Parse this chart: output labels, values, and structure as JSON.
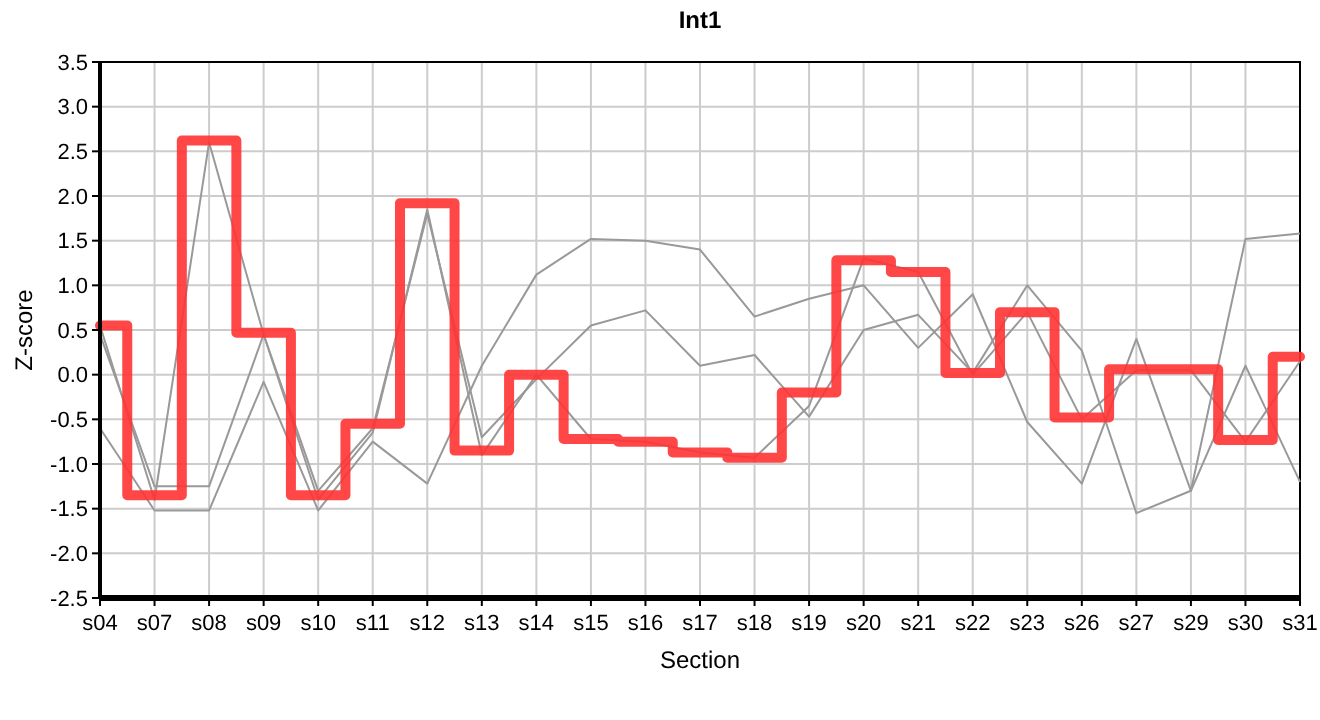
{
  "chart_data": {
    "type": "line",
    "title": "Int1",
    "xlabel": "Section",
    "ylabel": "Z-score",
    "categories": [
      "s04",
      "s07",
      "s08",
      "s09",
      "s10",
      "s11",
      "s12",
      "s13",
      "s14",
      "s15",
      "s16",
      "s17",
      "s18",
      "s19",
      "s20",
      "s21",
      "s22",
      "s23",
      "s26",
      "s27",
      "s29",
      "s30",
      "s31"
    ],
    "ylim": [
      -2.5,
      3.5
    ],
    "yticks": [
      {
        "value": -2.5,
        "label": "-2.5"
      },
      {
        "value": -2,
        "label": "-2.0"
      },
      {
        "value": -1.5,
        "label": "-1.5"
      },
      {
        "value": -1,
        "label": "-1.0"
      },
      {
        "value": -0.5,
        "label": "-0.5"
      },
      {
        "value": 0,
        "label": "0.0"
      },
      {
        "value": 0.5,
        "label": "0.5"
      },
      {
        "value": 1,
        "label": "1.0"
      },
      {
        "value": 1.5,
        "label": "1.5"
      },
      {
        "value": 2,
        "label": "2.0"
      },
      {
        "value": 2.5,
        "label": "2.5"
      },
      {
        "value": 3,
        "label": "3.0"
      },
      {
        "value": 3.5,
        "label": "3.5"
      }
    ],
    "grid": true,
    "marker": "none",
    "line_style": "solid",
    "series": [
      {
        "color": "#999999",
        "values": [
          -0.6,
          -1.52,
          -1.52,
          -0.08,
          -1.52,
          -0.75,
          -1.22,
          0.1,
          1.12,
          1.52,
          1.5,
          1.4,
          0.65,
          0.85,
          1.0,
          0.3,
          0.9,
          -0.53,
          -1.22,
          0.4,
          -1.3,
          1.52,
          1.58
        ]
      },
      {
        "color": "#999999",
        "values": [
          0.45,
          -1.25,
          -1.25,
          0.45,
          -1.3,
          -0.6,
          1.8,
          -0.7,
          -0.05,
          0.55,
          0.72,
          0.1,
          0.22,
          -0.47,
          0.5,
          0.67,
          0.02,
          1.0,
          0.27,
          -1.55,
          -1.3,
          0.1,
          -1.2
        ]
      },
      {
        "color": "#999999",
        "values": [
          0.55,
          -1.4,
          2.6,
          0.45,
          -1.4,
          -0.65,
          1.85,
          -0.9,
          0.0,
          -0.72,
          -0.75,
          -0.87,
          -0.93,
          -0.35,
          1.3,
          1.15,
          0.0,
          0.7,
          -0.5,
          0.05,
          0.05,
          -0.75,
          0.15
        ]
      },
      {
        "type": "step",
        "color": "#ff3333",
        "values": [
          0.55,
          -1.35,
          2.62,
          0.47,
          -1.35,
          -0.55,
          1.92,
          -0.85,
          0.0,
          -0.72,
          -0.75,
          -0.87,
          -0.93,
          -0.2,
          1.28,
          1.15,
          0.02,
          0.7,
          -0.48,
          0.06,
          0.06,
          -0.73,
          0.2
        ]
      }
    ]
  }
}
